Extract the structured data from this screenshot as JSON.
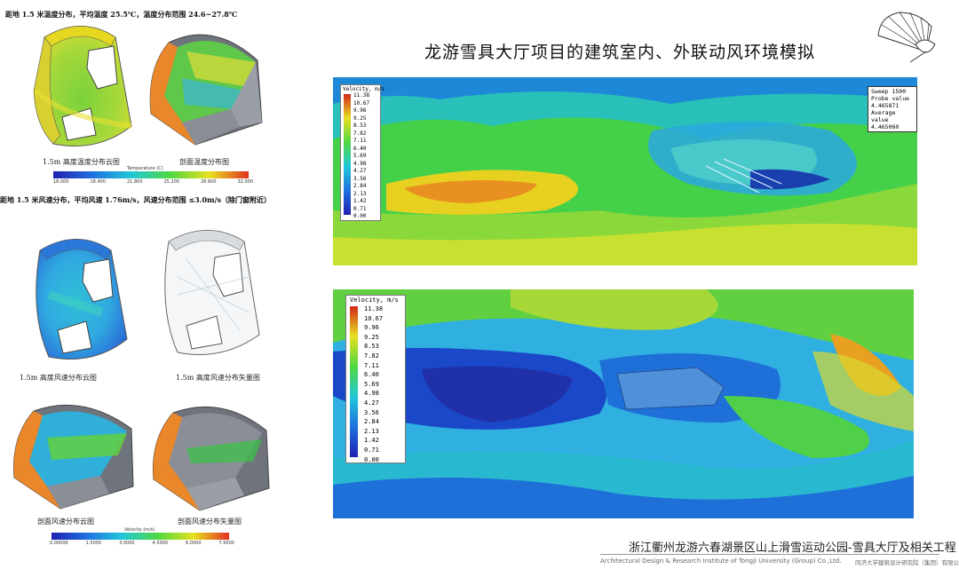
{
  "main_title": "龙游雪具大厅项目的建筑室内、外联动风环境模拟",
  "temperature_section": {
    "heading": "距地 1.5 米温度分布，平均温度 25.5℃，温度分布范围 24.6~27.8℃",
    "caption_left": "1.5m 高度温度分布云图",
    "caption_right": "剖面温度分布图",
    "colorbar_title": "Temperature (C)",
    "colorbar_ticks": [
      "18.000",
      "18.400",
      "21.800",
      "25.200",
      "28.600",
      "32.000"
    ]
  },
  "wind_section": {
    "heading": "距地 1.5 米风速分布，平均风速 1.76m/s，风速分布范围 ≤3.0m/s（除门窗附近）",
    "caption_left": "1.5m 高度风速分布云图",
    "caption_right": "1.5m 高度风速分布矢量图",
    "caption_bottom_left": "剖面风速分布云图",
    "caption_bottom_right": "剖面风速分布矢量图",
    "colorbar_title": "Velocity (m/s)",
    "colorbar_ticks": [
      "0.00000",
      "1.5000",
      "3.0000",
      "4.5000",
      "6.0000",
      "7.5000"
    ]
  },
  "sim_top": {
    "legend_title": "Velocity, m/s",
    "legend_values": [
      "11.38",
      "10.67",
      "9.96",
      "9.25",
      "8.53",
      "7.82",
      "7.11",
      "6.40",
      "5.69",
      "4.98",
      "4.27",
      "3.56",
      "2.84",
      "2.13",
      "1.42",
      "0.71",
      "0.00"
    ],
    "probe_lines": [
      "Sweep 1500",
      "Probe value",
      "4.465871",
      "Average value",
      "4.465060"
    ]
  },
  "sim_bottom": {
    "legend_title": "Velocity, m/s",
    "legend_values": [
      "11.38",
      "10.67",
      "9.96",
      "9.25",
      "8.53",
      "7.82",
      "7.11",
      "6.40",
      "5.69",
      "4.98",
      "4.27",
      "3.56",
      "2.84",
      "2.13",
      "1.42",
      "0.71",
      "0.00"
    ]
  },
  "footer": {
    "project_cn": "浙江衢州龙游六春湖景区山上滑雪运动公园-雪具大厅及相关工程",
    "institute_en": "Architectural Design & Research Institute of Tongji University (Group) Co.,Ltd.",
    "institute_cn": "同济大学建筑设计研究院（集团）有限公司"
  },
  "colors": {
    "jet_dark_blue": "#1a2fb0",
    "jet_blue": "#1f6fe0",
    "jet_cyan": "#20c0e0",
    "jet_green": "#3cd24a",
    "jet_yellow": "#e8e830",
    "jet_orange": "#f0a020",
    "jet_red": "#d83020",
    "roof_orange": "#e9872a",
    "structure_gray": "#7a7e86"
  },
  "icons": [
    "fan-logo-icon"
  ]
}
